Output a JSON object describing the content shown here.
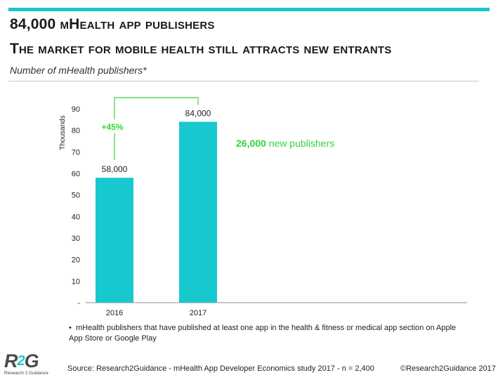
{
  "header": {
    "title_line1": "84,000 mHealth app publishers",
    "title_line2": "The market for mobile health still attracts new entrants",
    "subtitle": "Number of mHealth publishers*"
  },
  "colors": {
    "accent": "#17c9cf",
    "growth": "#35d43a",
    "axis": "#8c8c8c",
    "text": "#222222"
  },
  "chart_data": {
    "type": "bar",
    "categories": [
      "2016",
      "2017"
    ],
    "values": [
      58000,
      84000
    ],
    "value_labels": [
      "58,000",
      "84,000"
    ],
    "ylabel": "Thousands",
    "ylim": [
      0,
      90
    ],
    "yticks": [
      "-",
      "10",
      "20",
      "30",
      "40",
      "50",
      "60",
      "70",
      "80",
      "90"
    ],
    "grid": false,
    "annotations": {
      "growth": "+45%",
      "new_count": "26,000",
      "new_text": "new publishers"
    }
  },
  "footnote": "mHealth publishers that have published at least one app in the health & fitness or medical app section on Apple App Store or Google Play",
  "footer": {
    "source": "Source: Research2Guidance - mHealth App Developer Economics study 2017 - n = 2,400",
    "copyright": "©Research2Guidance 2017",
    "logo_mark_left": "R",
    "logo_mark_mid": "2",
    "logo_mark_right": "G",
    "logo_text": "Research 2 Guidance",
    "logo_icon": "r2g-logo"
  }
}
